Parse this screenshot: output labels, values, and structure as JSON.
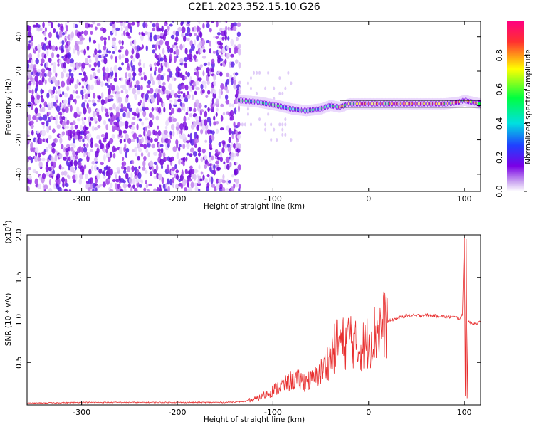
{
  "title": "C2E1.2023.352.15.10.G26",
  "top_panel": {
    "xlabel": "Height of straight line (km)",
    "ylabel": "Frequency (Hz)",
    "colorbar_label": "Normalized spectral amplitude"
  },
  "bottom_panel": {
    "xlabel": "Height of straight line (km)",
    "ylabel": "SNR (10 * v/v)",
    "scale_label_base": "(x10",
    "scale_label_exp": "4",
    "scale_label_close": ")"
  },
  "chart_data": [
    {
      "type": "heatmap",
      "title": "C2E1.2023.352.15.10.G26",
      "xlabel": "Height of straight line (km)",
      "ylabel": "Frequency (Hz)",
      "xlim": [
        -357,
        117
      ],
      "ylim": [
        -50,
        49
      ],
      "xticks": [
        -300,
        -200,
        -100,
        0,
        100
      ],
      "xtick_labels": [
        "-300",
        "-200",
        "-100",
        "0",
        "100"
      ],
      "yticks": [
        -40,
        -20,
        0,
        20,
        40
      ],
      "ytick_labels": [
        "-40",
        "-20",
        "0",
        "20",
        "40"
      ],
      "colorbar": {
        "label": "Normalized spectral amplitude",
        "range": [
          0,
          1
        ],
        "ticks": [
          0,
          0.2,
          0.4,
          0.6,
          0.8
        ],
        "tick_labels": [
          "0.0",
          "0.2",
          "0.4",
          "0.6",
          "0.8"
        ],
        "colors": [
          "#ffffff",
          "#c8a0f0",
          "#7a00e6",
          "#2040ff",
          "#00e0e0",
          "#00ff40",
          "#ffff00",
          "#ff3030",
          "#ff0080"
        ]
      },
      "features": {
        "noise_band_x": [
          -357,
          -135
        ],
        "signal_trace": {
          "x": [
            -135,
            -115,
            -95,
            -80,
            -65,
            -50,
            -40,
            -30,
            -20,
            0,
            20,
            40,
            60,
            80,
            95,
            100,
            117
          ],
          "y": [
            3,
            2,
            0,
            -2,
            -3,
            -2,
            0,
            -1,
            1,
            1,
            1,
            1,
            1,
            1,
            2,
            3,
            1
          ]
        },
        "horizontal_lines_y": [
          -1,
          3
        ],
        "horizontal_lines_x": [
          -30,
          117
        ]
      },
      "grid": false,
      "legend": "none"
    },
    {
      "type": "line",
      "xlabel": "Height of straight line (km)",
      "ylabel": "SNR (10 * v/v)",
      "xlim": [
        -357,
        117
      ],
      "ylim": [
        0,
        2.0
      ],
      "y_scale_factor": "x10^4",
      "xticks": [
        -300,
        -200,
        -100,
        0,
        100
      ],
      "xtick_labels": [
        "-300",
        "-200",
        "-100",
        "0",
        "100"
      ],
      "yticks": [
        0.5,
        1.0,
        1.5,
        2.0
      ],
      "ytick_labels": [
        "0.5",
        "1.0",
        "1.5",
        "2.0"
      ],
      "series": [
        {
          "color": "#e83030",
          "x": [
            -357,
            -300,
            -250,
            -200,
            -150,
            -130,
            -115,
            -105,
            -95,
            -85,
            -78,
            -70,
            -60,
            -50,
            -40,
            -32,
            -25,
            -18,
            -12,
            -5,
            0,
            5,
            10,
            20,
            30,
            40,
            50,
            60,
            70,
            80,
            90,
            95,
            98,
            100,
            101,
            102,
            103,
            104,
            106,
            110,
            114,
            117
          ],
          "y": [
            0.02,
            0.03,
            0.03,
            0.03,
            0.03,
            0.04,
            0.08,
            0.14,
            0.2,
            0.25,
            0.3,
            0.28,
            0.28,
            0.38,
            0.55,
            0.75,
            0.72,
            0.82,
            0.65,
            0.7,
            0.75,
            0.82,
            0.88,
            0.98,
            1.02,
            1.05,
            1.05,
            1.06,
            1.05,
            1.04,
            1.03,
            1.02,
            1.05,
            2.0,
            0.1,
            1.95,
            0.08,
            1.0,
            0.96,
            0.96,
            0.97,
            0.97
          ]
        }
      ],
      "grid": false,
      "legend": "none"
    }
  ]
}
